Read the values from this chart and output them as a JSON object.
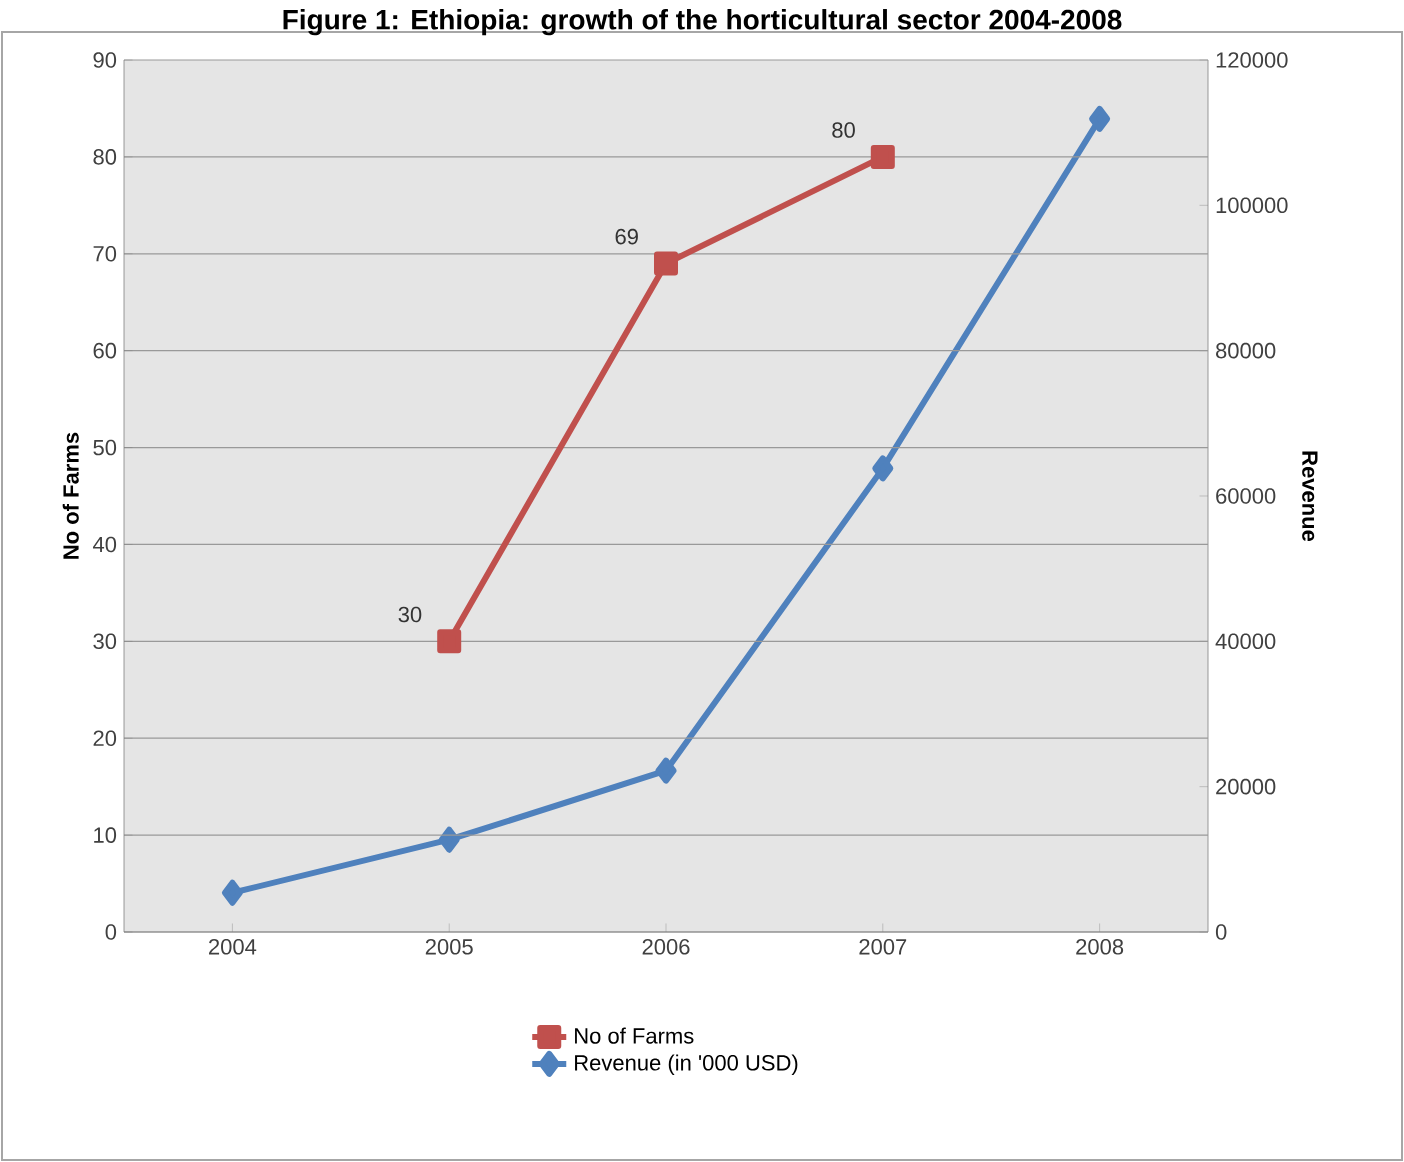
{
  "chart_data": {
    "type": "line",
    "title": "Figure 1: Ethiopia: growth of the horticultural sector 2004-2008",
    "ylabel": "No of Farms",
    "y2label": "Revenue",
    "categories": [
      "2004",
      "2005",
      "2006",
      "2007",
      "2008"
    ],
    "series": [
      {
        "name": "No of Farms",
        "color": "#c0504d",
        "marker": "square",
        "values": [
          null,
          30,
          69,
          80,
          null
        ],
        "value_labels": [
          null,
          "30",
          "69",
          "80",
          null
        ]
      },
      {
        "name": "Revenue (in '000 USD)",
        "color": "#4f81bd",
        "marker": "diamond",
        "axis": "y2",
        "values": [
          5400,
          12700,
          22200,
          63800,
          111900
        ]
      }
    ],
    "ylim": [
      0,
      90
    ],
    "yticks": [
      0,
      10,
      20,
      30,
      40,
      50,
      60,
      70,
      80,
      90
    ],
    "y2lim": [
      0,
      120000
    ],
    "y2ticks": [
      0,
      20000,
      40000,
      60000,
      80000,
      100000,
      120000
    ],
    "grid": "y",
    "legend": "bottom"
  }
}
